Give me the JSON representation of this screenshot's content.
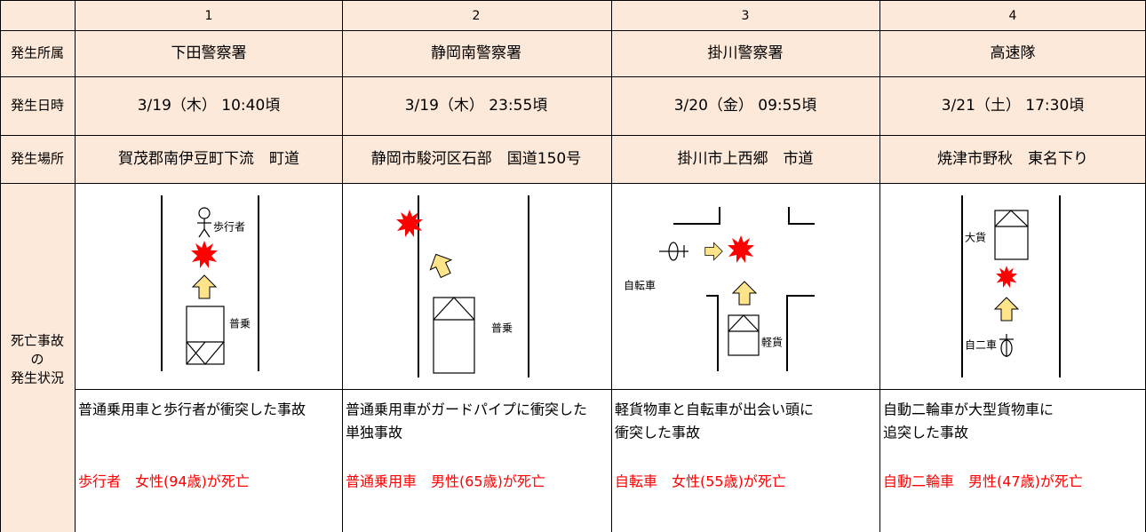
{
  "table": {
    "columns": [
      "1",
      "2",
      "3",
      "4"
    ],
    "rows": [
      {
        "label": "発生所属",
        "cells": [
          "下田警察署",
          "静岡南警察署",
          "掛川警察署",
          "高速隊"
        ]
      },
      {
        "label": "発生日時",
        "cells": [
          "3/19（木） 10:40頃",
          "3/19（木） 23:55頃",
          "3/20（金） 09:55頃",
          "3/21（土） 17:30頃"
        ]
      },
      {
        "label": "発生場所",
        "cells": [
          "賀茂郡南伊豆町下流　町道",
          "静岡市駿河区石部　国道150号",
          "掛川市上西郷　市道",
          "焼津市野秋　東名下り"
        ]
      }
    ],
    "situation": {
      "label_lines": [
        "死亡事故",
        "の",
        "発生状況"
      ],
      "cases": [
        {
          "diagram_labels": [
            "歩行者",
            "普乗"
          ],
          "description": [
            "普通乗用車と歩行者が衝突した事故"
          ],
          "fatality": "歩行者　女性(94歳)が死亡"
        },
        {
          "diagram_labels": [
            "普乗"
          ],
          "description": [
            "普通乗用車がガードパイプに衝突した",
            "単独事故"
          ],
          "fatality": "普通乗用車　男性(65歳)が死亡"
        },
        {
          "diagram_labels": [
            "自転車",
            "軽貨"
          ],
          "description": [
            "軽貨物車と自転車が出会い頭に",
            "衝突した事故"
          ],
          "fatality": "自転車　女性(55歳)が死亡"
        },
        {
          "diagram_labels": [
            "大貨",
            "自二車"
          ],
          "description": [
            "自動二輪車が大型貨物車に",
            "追突した事故"
          ],
          "fatality": "自動二輪車　男性(47歳)が死亡"
        }
      ]
    }
  }
}
